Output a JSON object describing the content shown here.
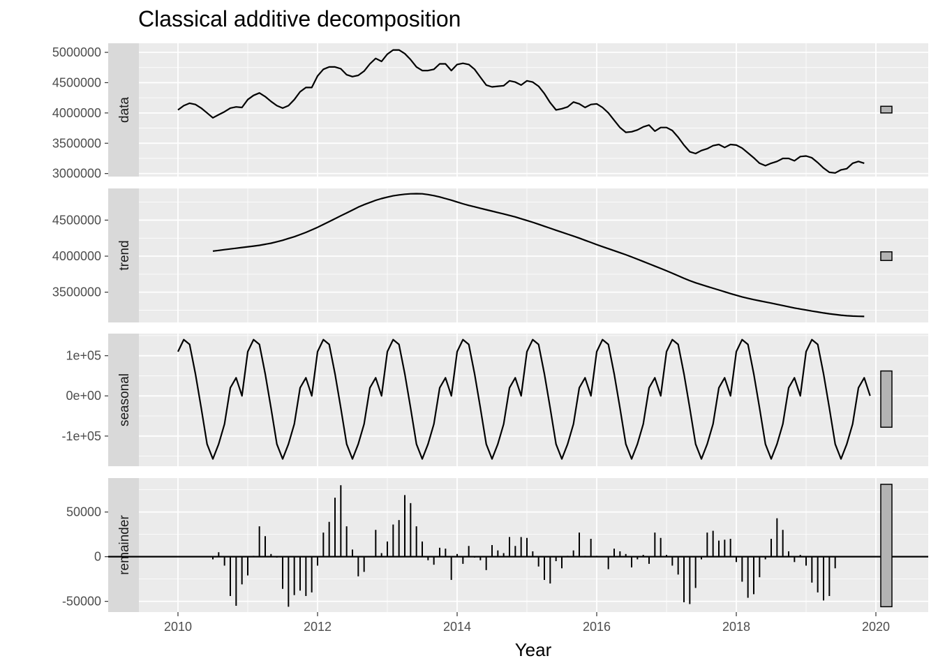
{
  "chart_data": {
    "type": "line",
    "title": "Classical additive decomposition",
    "xlabel": "Year",
    "x_ticks": [
      2010,
      2012,
      2014,
      2016,
      2018,
      2020
    ],
    "x_tick_labels": [
      "2010",
      "2012",
      "2014",
      "2016",
      "2018",
      "2020"
    ],
    "xlim": [
      2009,
      2020.75
    ],
    "grid": true,
    "panels": [
      {
        "name": "data",
        "strip_label": "data",
        "geom": "line",
        "ylim": [
          2950000,
          5150000
        ],
        "y_ticks": [
          3000000,
          3500000,
          4000000,
          4500000,
          5000000
        ],
        "y_tick_labels": [
          "3000000",
          "3500000",
          "4000000",
          "4500000",
          "5000000"
        ],
        "scale_bar": [
          4000000,
          4110000
        ],
        "x_start": 2010,
        "x_step": 0.0833333,
        "values": [
          4050000,
          4120000,
          4160000,
          4140000,
          4080000,
          4000000,
          3920000,
          3970000,
          4020000,
          4080000,
          4100000,
          4090000,
          4220000,
          4290000,
          4330000,
          4270000,
          4190000,
          4120000,
          4080000,
          4120000,
          4220000,
          4350000,
          4420000,
          4420000,
          4610000,
          4720000,
          4760000,
          4760000,
          4730000,
          4630000,
          4600000,
          4620000,
          4690000,
          4810000,
          4900000,
          4850000,
          4970000,
          5040000,
          5040000,
          4980000,
          4880000,
          4760000,
          4700000,
          4700000,
          4720000,
          4810000,
          4810000,
          4700000,
          4800000,
          4820000,
          4800000,
          4720000,
          4590000,
          4460000,
          4430000,
          4440000,
          4450000,
          4530000,
          4510000,
          4460000,
          4530000,
          4510000,
          4440000,
          4320000,
          4170000,
          4050000,
          4070000,
          4100000,
          4180000,
          4150000,
          4090000,
          4140000,
          4150000,
          4090000,
          4000000,
          3880000,
          3760000,
          3680000,
          3690000,
          3720000,
          3770000,
          3800000,
          3700000,
          3760000,
          3760000,
          3710000,
          3600000,
          3470000,
          3360000,
          3330000,
          3380000,
          3410000,
          3460000,
          3480000,
          3430000,
          3480000,
          3470000,
          3420000,
          3340000,
          3260000,
          3170000,
          3130000,
          3170000,
          3200000,
          3250000,
          3250000,
          3210000,
          3280000,
          3290000,
          3260000,
          3180000,
          3090000,
          3020000,
          3010000,
          3060000,
          3080000,
          3170000,
          3200000,
          3170000
        ]
      },
      {
        "name": "trend",
        "strip_label": "trend",
        "geom": "line",
        "ylim": [
          3080000,
          4940000
        ],
        "y_ticks": [
          3500000,
          4000000,
          4500000
        ],
        "y_tick_labels": [
          "3500000",
          "4000000",
          "4500000"
        ],
        "scale_bar": [
          3940000,
          4060000
        ],
        "x_start": 2010.5,
        "x_step": 0.0833333,
        "values": [
          4070000,
          4080000,
          4090000,
          4100000,
          4110000,
          4120000,
          4130000,
          4140000,
          4150000,
          4165000,
          4180000,
          4200000,
          4220000,
          4245000,
          4270000,
          4300000,
          4330000,
          4365000,
          4400000,
          4440000,
          4480000,
          4520000,
          4560000,
          4600000,
          4640000,
          4680000,
          4715000,
          4745000,
          4775000,
          4800000,
          4820000,
          4837000,
          4850000,
          4860000,
          4865000,
          4867000,
          4865000,
          4855000,
          4840000,
          4822000,
          4800000,
          4777000,
          4752000,
          4727000,
          4705000,
          4685000,
          4665000,
          4645000,
          4625000,
          4605000,
          4585000,
          4565000,
          4545000,
          4520000,
          4495000,
          4470000,
          4443000,
          4415000,
          4388000,
          4360000,
          4333000,
          4305000,
          4278000,
          4250000,
          4220000,
          4190000,
          4160000,
          4132000,
          4104000,
          4076000,
          4048000,
          4020000,
          3990000,
          3958000,
          3926000,
          3894000,
          3862000,
          3830000,
          3797000,
          3763000,
          3728000,
          3693000,
          3660000,
          3630000,
          3605000,
          3580000,
          3555000,
          3530000,
          3505000,
          3480000,
          3457000,
          3435000,
          3415000,
          3397000,
          3380000,
          3364000,
          3348000,
          3331000,
          3314000,
          3297000,
          3281000,
          3266000,
          3252000,
          3238000,
          3225000,
          3212000,
          3200000,
          3190000,
          3181000,
          3173000,
          3168000,
          3165000,
          3163000
        ]
      },
      {
        "name": "seasonal",
        "strip_label": "seasonal",
        "geom": "line",
        "ylim": [
          -175000,
          155000
        ],
        "y_ticks": [
          -100000,
          0,
          100000
        ],
        "y_tick_labels": [
          "-1e+05",
          "0e+00",
          "1e+05"
        ],
        "scale_bar": [
          -78000,
          62000
        ],
        "x_start": 2010,
        "x_step": 0.0833333,
        "cycle": [
          110000,
          140000,
          128000,
          55000,
          -30000,
          -120000,
          -157000,
          -120000,
          -70000,
          20000,
          45000,
          0
        ],
        "repeats": 10
      },
      {
        "name": "remainder",
        "strip_label": "remainder",
        "geom": "bar",
        "baseline": 0,
        "ylim": [
          -62000,
          88000
        ],
        "y_ticks": [
          -50000,
          0,
          50000
        ],
        "y_tick_labels": [
          "-50000",
          "0",
          "50000"
        ],
        "scale_bar": [
          -56000,
          81000
        ],
        "x_start": 2010.5,
        "x_step": 0.0833333,
        "values": [
          -3000,
          5000,
          -10000,
          -44000,
          -55000,
          -31000,
          -21000,
          1000,
          34000,
          23000,
          3000,
          -1000,
          -36000,
          -56000,
          -43000,
          -38000,
          -44000,
          -40000,
          -10000,
          27000,
          39000,
          66000,
          80000,
          34000,
          8000,
          -22000,
          -17000,
          0,
          30000,
          4000,
          17000,
          36000,
          41000,
          69000,
          60000,
          34000,
          17000,
          -4000,
          -9000,
          10000,
          9000,
          -26000,
          3000,
          -8000,
          12000,
          -1000,
          -4000,
          -15000,
          13000,
          7000,
          4000,
          22000,
          12000,
          22000,
          21000,
          6000,
          -11000,
          -26000,
          -30000,
          -5000,
          -13000,
          1000,
          7000,
          27000,
          1000,
          20000,
          1000,
          0,
          -14000,
          9000,
          6000,
          3000,
          -12000,
          -3000,
          2000,
          -8000,
          27000,
          21000,
          2000,
          -10000,
          -20000,
          -51000,
          -53000,
          -35000,
          -3000,
          27000,
          29000,
          18000,
          19000,
          20000,
          -6000,
          -28000,
          -46000,
          -42000,
          -23000,
          -3000,
          20000,
          43000,
          30000,
          6000,
          -6000,
          2000,
          -10000,
          -29000,
          -40000,
          -49000,
          -44000,
          -13000
        ]
      }
    ]
  }
}
